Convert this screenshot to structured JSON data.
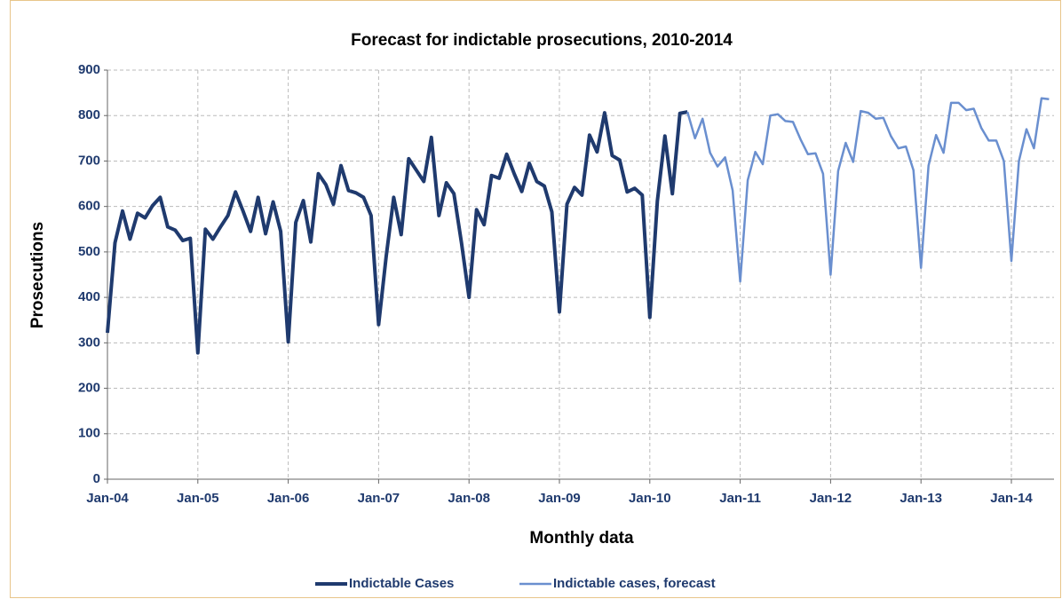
{
  "chart_data": {
    "type": "line",
    "title": "Forecast for indictable prosecutions, 2010-2014",
    "x_label": "Monthly data",
    "y_label": "Prosecutions",
    "categories": [
      "Jan-04",
      null,
      null,
      null,
      null,
      null,
      null,
      null,
      null,
      null,
      null,
      null,
      "Jan-05",
      null,
      null,
      null,
      null,
      null,
      null,
      null,
      null,
      null,
      null,
      null,
      "Jan-06",
      null,
      null,
      null,
      null,
      null,
      null,
      null,
      null,
      null,
      null,
      null,
      "Jan-07",
      null,
      null,
      null,
      null,
      null,
      null,
      null,
      null,
      null,
      null,
      null,
      "Jan-08",
      null,
      null,
      null,
      null,
      null,
      null,
      null,
      null,
      null,
      null,
      null,
      "Jan-09",
      null,
      null,
      null,
      null,
      null,
      null,
      null,
      null,
      null,
      null,
      null,
      "Jan-10",
      null,
      null,
      null,
      null,
      null,
      null,
      null,
      null,
      null,
      null,
      null,
      "Jan-11",
      null,
      null,
      null,
      null,
      null,
      null,
      null,
      null,
      null,
      null,
      null,
      "Jan-12",
      null,
      null,
      null,
      null,
      null,
      null,
      null,
      null,
      null,
      null,
      null,
      "Jan-13",
      null,
      null,
      null,
      null,
      null,
      null,
      null,
      null,
      null,
      null,
      null,
      "Jan-14",
      null,
      null,
      null,
      null,
      null
    ],
    "series": [
      {
        "name": "Indictable Cases",
        "color": "#1f3a6e",
        "width": 4,
        "values": [
          322,
          520,
          590,
          528,
          585,
          575,
          602,
          620,
          555,
          548,
          525,
          530,
          278,
          550,
          528,
          555,
          580,
          632,
          590,
          545,
          620,
          540,
          610,
          545,
          302,
          565,
          613,
          522,
          672,
          648,
          605,
          690,
          635,
          630,
          620,
          580,
          340,
          490,
          620,
          538,
          705,
          680,
          655,
          752,
          580,
          652,
          628,
          520,
          400,
          593,
          560,
          668,
          662,
          715,
          672,
          633,
          695,
          655,
          645,
          588,
          368,
          605,
          642,
          625,
          757,
          720,
          806,
          712,
          702,
          632,
          640,
          625,
          356,
          612,
          755,
          628,
          805,
          808,
          null,
          null,
          null,
          null,
          null,
          null,
          null,
          null,
          null,
          null,
          null,
          null,
          null,
          null,
          null,
          null,
          null,
          null,
          null,
          null,
          null,
          null,
          null,
          null,
          null,
          null,
          null,
          null,
          null,
          null,
          null,
          null,
          null,
          null,
          null,
          null,
          null,
          null,
          null,
          null,
          null,
          null,
          null,
          null,
          null,
          null,
          null,
          null
        ]
      },
      {
        "name": "Indictable cases, forecast",
        "color": "#6a8fcf",
        "width": 2.5,
        "values": [
          null,
          null,
          null,
          null,
          null,
          null,
          null,
          null,
          null,
          null,
          null,
          null,
          null,
          null,
          null,
          null,
          null,
          null,
          null,
          null,
          null,
          null,
          null,
          null,
          null,
          null,
          null,
          null,
          null,
          null,
          null,
          null,
          null,
          null,
          null,
          null,
          null,
          null,
          null,
          null,
          null,
          null,
          null,
          null,
          null,
          null,
          null,
          null,
          null,
          null,
          null,
          null,
          null,
          null,
          null,
          null,
          null,
          null,
          null,
          null,
          null,
          null,
          null,
          null,
          null,
          null,
          null,
          null,
          null,
          null,
          null,
          null,
          null,
          null,
          null,
          null,
          null,
          808,
          750,
          793,
          718,
          688,
          708,
          635,
          435,
          658,
          720,
          693,
          800,
          803,
          788,
          786,
          748,
          715,
          717,
          672,
          450,
          678,
          740,
          698,
          810,
          806,
          793,
          795,
          755,
          728,
          732,
          680,
          465,
          690,
          757,
          718,
          828,
          828,
          812,
          815,
          773,
          745,
          745,
          700,
          480,
          700,
          770,
          728,
          838,
          836
        ]
      }
    ],
    "ylim": [
      0,
      900
    ],
    "yticks": [
      0,
      100,
      200,
      300,
      400,
      500,
      600,
      700,
      800,
      900
    ],
    "grid": true,
    "legend": "bottom"
  }
}
